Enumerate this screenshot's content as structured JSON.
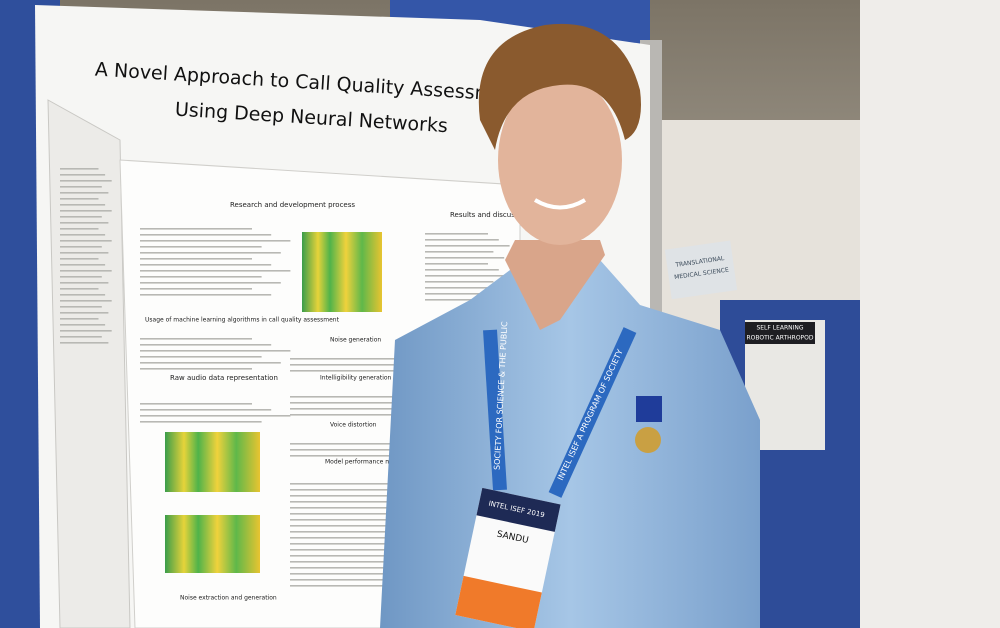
{
  "poster": {
    "title_lines": [
      "A Novel Approach to Call Quality Assessment",
      "Using Deep Neural Networks"
    ],
    "sections": [
      "Research and development process",
      "Results and discussion",
      "Usage of machine learning algorithms in call quality assessment",
      "Raw audio data representation",
      "Noise generation",
      "Intelligibility generation",
      "Voice distortion",
      "Model performance metrics",
      "Noise extraction and generation"
    ]
  },
  "lanyard": {
    "left": "SOCIETY FOR SCIENCE & THE PUBLIC",
    "right": "INTEL ISEF A PROGRAM OF SOCIETY"
  },
  "badge": {
    "event": "INTEL ISEF 2019",
    "name": "SANDU"
  },
  "signs": {
    "booth_category": [
      "TRANSLATIONAL",
      "MEDICAL SCIENCE"
    ],
    "neighbor_project": [
      "SELF LEARNING",
      "ROBOTIC ARTHROPOD"
    ]
  }
}
